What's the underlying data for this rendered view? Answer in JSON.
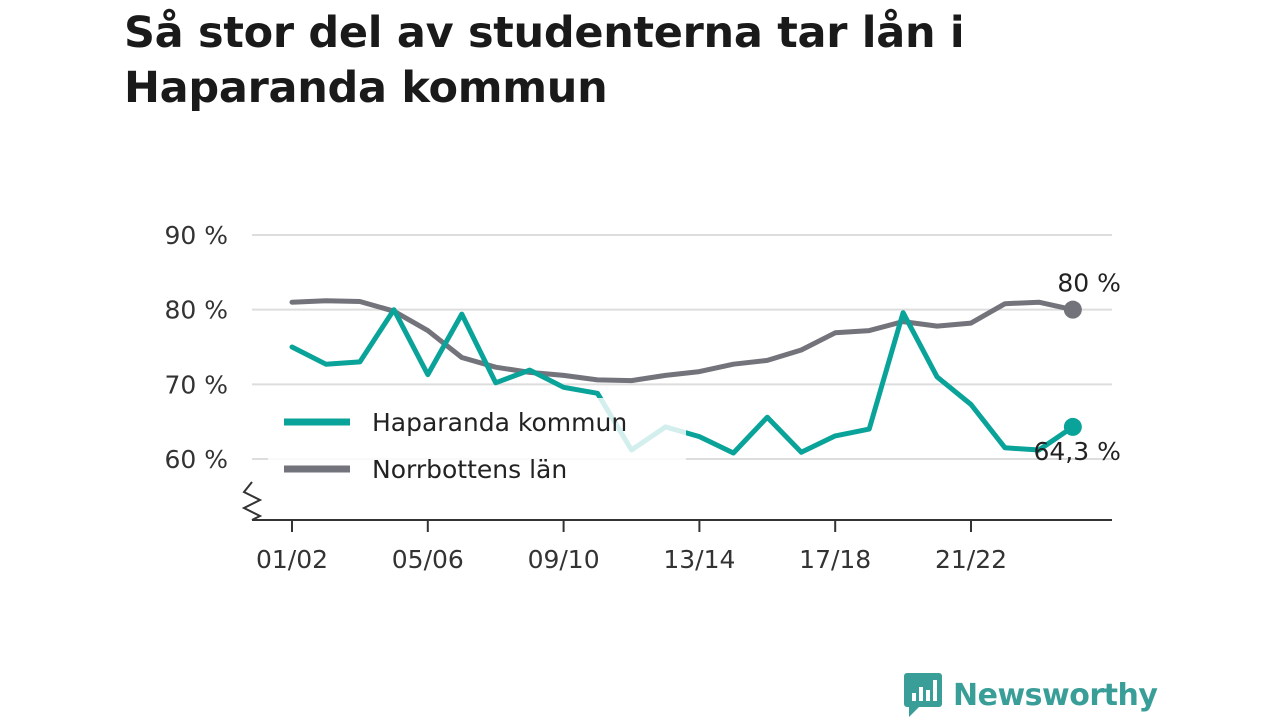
{
  "page": {
    "title": "Så stor del av studenterna tar lån i Haparanda kommun",
    "brand": "Newsworthy"
  },
  "colors": {
    "haparanda": "#0aa39a",
    "norrbotten": "#73737b",
    "grid": "#dddddd",
    "axis": "#333333",
    "brand": "#3a9e98"
  },
  "chart_data": {
    "type": "line",
    "x": [
      "01/02",
      "02/03",
      "03/04",
      "04/05",
      "05/06",
      "06/07",
      "07/08",
      "08/09",
      "09/10",
      "10/11",
      "11/12",
      "12/13",
      "13/14",
      "14/15",
      "15/16",
      "16/17",
      "17/18",
      "18/19",
      "19/20",
      "20/21",
      "21/22",
      "22/23",
      "23/24",
      "24/25"
    ],
    "x_tick_labels": [
      "01/02",
      "05/06",
      "09/10",
      "13/14",
      "17/18",
      "21/22"
    ],
    "y_tick_labels": [
      "90 %",
      "80 %",
      "70 %",
      "60 %"
    ],
    "y_ticks": [
      90,
      80,
      70,
      60
    ],
    "ylim": [
      51.5,
      90
    ],
    "y_axis_broken": true,
    "grid": true,
    "legend_position": "bottom-left",
    "series": [
      {
        "name": "Haparanda kommun",
        "color_key": "haparanda",
        "values": [
          75,
          72.7,
          73,
          80,
          71.3,
          79.4,
          70.2,
          71.9,
          69.6,
          68.8,
          61.2,
          64.3,
          63,
          60.8,
          65.6,
          60.9,
          63.1,
          64,
          79.6,
          71,
          67.3,
          61.5,
          61.2,
          64.3
        ],
        "end_label": "64,3 %"
      },
      {
        "name": "Norrbottens län",
        "color_key": "norrbotten",
        "values": [
          81,
          81.2,
          81.1,
          79.8,
          77.2,
          73.6,
          72.3,
          71.6,
          71.2,
          70.6,
          70.5,
          71.2,
          71.7,
          72.7,
          73.2,
          74.6,
          76.9,
          77.2,
          78.4,
          77.8,
          78.2,
          80.8,
          81,
          80
        ],
        "end_label": "80 %"
      }
    ]
  }
}
